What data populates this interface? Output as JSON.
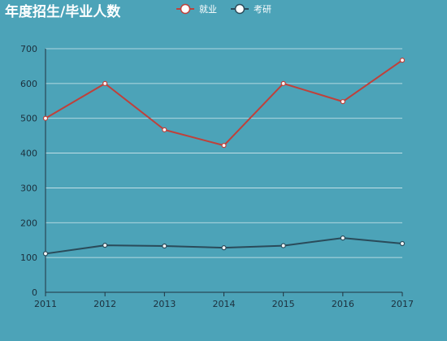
{
  "chart_data": {
    "type": "line",
    "title": "年度招生/毕业人数",
    "categories": [
      "2011",
      "2012",
      "2013",
      "2014",
      "2015",
      "2016",
      "2017"
    ],
    "series": [
      {
        "name": "就业",
        "color": "#c0403a",
        "values": [
          500,
          600,
          467,
          422,
          600,
          548,
          667
        ]
      },
      {
        "name": "考研",
        "color": "#2a4b5a",
        "values": [
          111,
          135,
          133,
          128,
          134,
          156,
          140
        ]
      }
    ],
    "ylim": [
      0,
      700
    ],
    "yticks": [
      0,
      100,
      200,
      300,
      400,
      500,
      600,
      700
    ],
    "grid": true,
    "legend_position": "top-center",
    "marker": "hollow-circle"
  }
}
